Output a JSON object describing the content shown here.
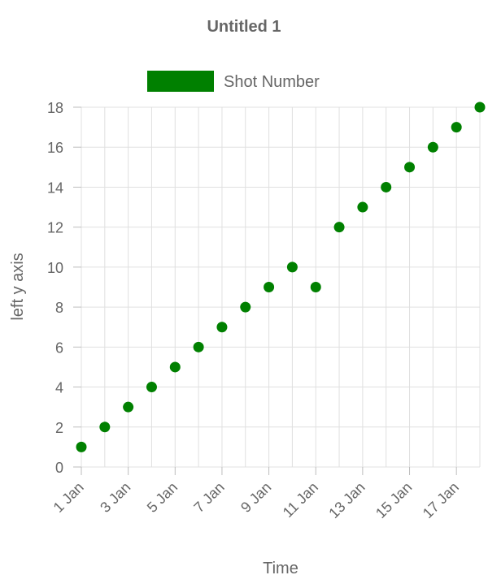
{
  "chart_data": {
    "type": "scatter",
    "title": "Untitled 1",
    "xlabel": "Time",
    "ylabel": "left y axis",
    "x_tick_labels": [
      "1 Jan",
      "3 Jan",
      "5 Jan",
      "7 Jan",
      "9 Jan",
      "11 Jan",
      "13 Jan",
      "15 Jan",
      "17 Jan"
    ],
    "y_tick_labels": [
      "0",
      "2",
      "4",
      "6",
      "8",
      "10",
      "12",
      "14",
      "16",
      "18"
    ],
    "xlim": [
      "1 Jan",
      "18 Jan"
    ],
    "ylim": [
      0,
      18
    ],
    "grid": true,
    "legend_position": "top",
    "series": [
      {
        "name": "Shot Number",
        "color": "#008000",
        "x": [
          "1 Jan",
          "2 Jan",
          "3 Jan",
          "4 Jan",
          "5 Jan",
          "6 Jan",
          "7 Jan",
          "8 Jan",
          "9 Jan",
          "10 Jan",
          "11 Jan",
          "12 Jan",
          "13 Jan",
          "14 Jan",
          "15 Jan",
          "16 Jan",
          "17 Jan",
          "18 Jan"
        ],
        "y": [
          1,
          2,
          3,
          4,
          5,
          6,
          7,
          8,
          9,
          10,
          9,
          12,
          13,
          14,
          15,
          16,
          17,
          18
        ]
      }
    ]
  }
}
